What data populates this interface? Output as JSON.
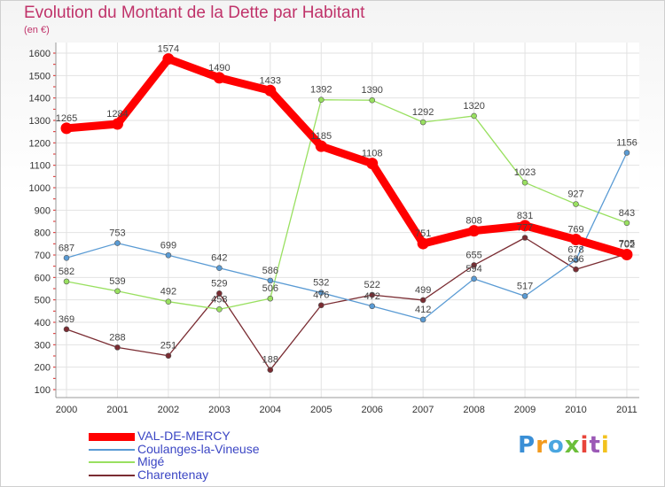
{
  "header": {
    "title": "Evolution du Montant de la Dette par Habitant",
    "unit": "(en €)"
  },
  "logo": {
    "text": "Proxiti"
  },
  "chart_data": {
    "type": "line",
    "title": "Evolution du Montant de la Dette par Habitant",
    "subtitle": "(en €)",
    "xlabel": "",
    "ylabel": "",
    "x": [
      "2000",
      "2001",
      "2002",
      "2003",
      "2004",
      "2005",
      "2006",
      "2007",
      "2008",
      "2009",
      "2010",
      "2011"
    ],
    "ylim": [
      100,
      1600
    ],
    "yticks": [
      100,
      200,
      300,
      400,
      500,
      600,
      700,
      800,
      900,
      1000,
      1100,
      1200,
      1300,
      1400,
      1500,
      1600
    ],
    "grid": true,
    "legend_position": "bottom-left",
    "series": [
      {
        "name": "VAL-DE-MERCY",
        "color": "#ff0000",
        "values": [
          1265,
          1284,
          1574,
          1490,
          1433,
          1185,
          1108,
          751,
          808,
          831,
          769,
          702
        ]
      },
      {
        "name": "Coulanges-la-Vineuse",
        "color": "#5a9bd4",
        "values": [
          687,
          753,
          699,
          642,
          586,
          532,
          472,
          412,
          594,
          517,
          678,
          1156
        ]
      },
      {
        "name": "Migé",
        "color": "#99e060",
        "values": [
          582,
          539,
          492,
          458,
          506,
          1392,
          1390,
          1292,
          1320,
          1023,
          927,
          843
        ]
      },
      {
        "name": "Charentenay",
        "color": "#7a2c32",
        "values": [
          369,
          288,
          251,
          529,
          188,
          476,
          522,
          499,
          655,
          777,
          636,
          705
        ]
      }
    ]
  }
}
